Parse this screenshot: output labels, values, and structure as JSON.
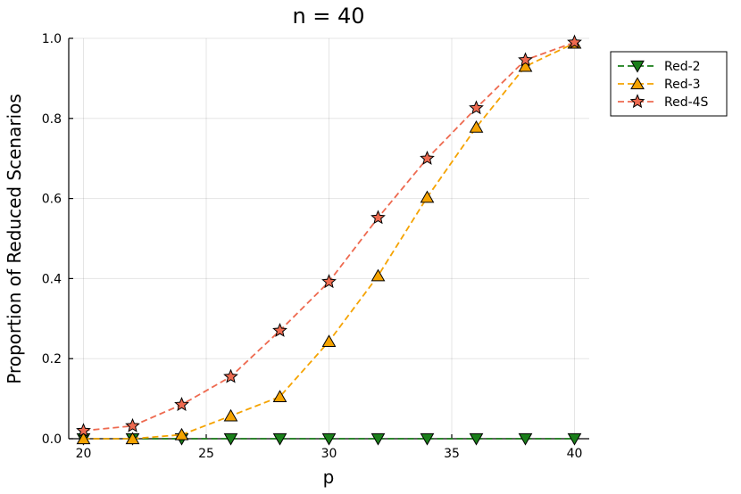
{
  "chart_data": {
    "type": "line",
    "title": "n = 40",
    "xlabel": "p",
    "ylabel": "Proportion of Reduced Scenarios",
    "xlim": [
      19.4,
      40.6
    ],
    "ylim": [
      0,
      1.0
    ],
    "xticks": [
      20,
      25,
      30,
      35,
      40
    ],
    "yticks": [
      0.0,
      0.2,
      0.4,
      0.6,
      0.8,
      1.0
    ],
    "xtick_labels": [
      "20",
      "25",
      "30",
      "35",
      "40"
    ],
    "ytick_labels": [
      "0.0",
      "0.2",
      "0.4",
      "0.6",
      "0.8",
      "1.0"
    ],
    "grid": true,
    "legend_position": "top-right outside",
    "x": [
      20,
      22,
      24,
      26,
      28,
      30,
      32,
      34,
      36,
      38,
      40
    ],
    "series": [
      {
        "name": "Red-2",
        "color": "#1a7f1a",
        "marker": "triangle-down",
        "values": [
          0,
          0,
          0,
          0,
          0,
          0,
          0,
          0,
          0,
          0,
          0
        ]
      },
      {
        "name": "Red-3",
        "color": "#f5a300",
        "marker": "triangle-up",
        "values": [
          0,
          0,
          0.01,
          0.057,
          0.105,
          0.243,
          0.407,
          0.603,
          0.778,
          0.93,
          0.988
        ]
      },
      {
        "name": "Red-4S",
        "color": "#ee6a50",
        "marker": "star",
        "values": [
          0.02,
          0.032,
          0.085,
          0.155,
          0.27,
          0.392,
          0.552,
          0.7,
          0.826,
          0.946,
          0.99
        ]
      }
    ]
  }
}
